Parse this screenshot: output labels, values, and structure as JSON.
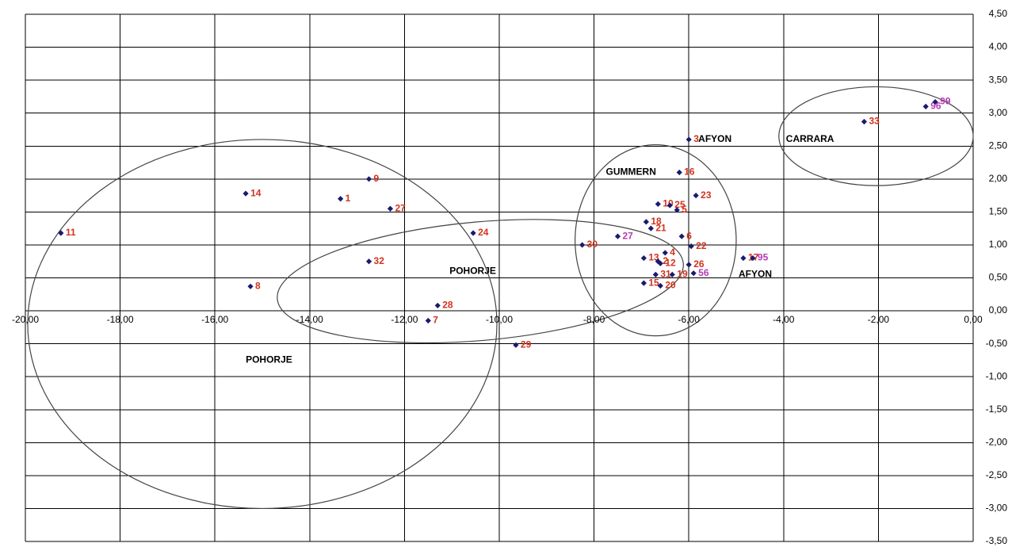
{
  "chart_data": {
    "type": "scatter",
    "xlim": [
      -20,
      0
    ],
    "ylim": [
      -3.5,
      4.5
    ],
    "x_step": 2,
    "y_step": 0.5,
    "grid": true,
    "x_ticks": [
      "-20,00",
      "-18,00",
      "-16,00",
      "-14,00",
      "-12,00",
      "-10,00",
      "-8,00",
      "-6,00",
      "-4,00",
      "-2,00",
      "0,00"
    ],
    "y_ticks": [
      "4,50",
      "4,00",
      "3,50",
      "3,00",
      "2,50",
      "2,00",
      "1,50",
      "1,00",
      "0,50",
      "0,00",
      "-0,50",
      "-1,00",
      "-1,50",
      "-2,00",
      "-2,50",
      "-3,00",
      "-3,50"
    ],
    "marker_color": "#1a1a6e",
    "label_colors": {
      "red": "#d2321e",
      "magenta": "#b43cb4"
    },
    "points": [
      {
        "label": "11",
        "x": -19.25,
        "y": 1.18,
        "color": "red"
      },
      {
        "label": "14",
        "x": -15.35,
        "y": 1.78,
        "color": "red"
      },
      {
        "label": "1",
        "x": -13.35,
        "y": 1.7,
        "color": "red"
      },
      {
        "label": "9",
        "x": -12.75,
        "y": 2.0,
        "color": "red"
      },
      {
        "label": "27",
        "x": -12.3,
        "y": 1.55,
        "color": "red"
      },
      {
        "label": "32",
        "x": -12.75,
        "y": 0.75,
        "color": "red"
      },
      {
        "label": "8",
        "x": -15.25,
        "y": 0.37,
        "color": "red"
      },
      {
        "label": "28",
        "x": -11.3,
        "y": 0.08,
        "color": "red"
      },
      {
        "label": "7",
        "x": -11.5,
        "y": -0.15,
        "color": "red"
      },
      {
        "label": "24",
        "x": -10.55,
        "y": 1.18,
        "color": "red"
      },
      {
        "label": "29",
        "x": -9.65,
        "y": -0.52,
        "color": "red"
      },
      {
        "label": "30",
        "x": -8.25,
        "y": 1.0,
        "color": "red"
      },
      {
        "label": "27",
        "x": -7.5,
        "y": 1.13,
        "color": "magenta"
      },
      {
        "label": "3",
        "x": -6.0,
        "y": 2.6,
        "color": "red"
      },
      {
        "label": "16",
        "x": -6.2,
        "y": 2.1,
        "color": "red"
      },
      {
        "label": "23",
        "x": -5.85,
        "y": 1.75,
        "color": "red"
      },
      {
        "label": "10",
        "x": -6.65,
        "y": 1.62,
        "color": "red"
      },
      {
        "label": "25",
        "x": -6.4,
        "y": 1.6,
        "color": "red"
      },
      {
        "label": "5",
        "x": -6.25,
        "y": 1.53,
        "color": "red"
      },
      {
        "label": "18",
        "x": -6.9,
        "y": 1.35,
        "color": "red"
      },
      {
        "label": "21",
        "x": -6.8,
        "y": 1.25,
        "color": "red"
      },
      {
        "label": "6",
        "x": -6.15,
        "y": 1.13,
        "color": "red"
      },
      {
        "label": "4",
        "x": -6.5,
        "y": 0.88,
        "color": "red"
      },
      {
        "label": "22",
        "x": -5.95,
        "y": 0.98,
        "color": "red"
      },
      {
        "label": "13",
        "x": -6.95,
        "y": 0.8,
        "color": "red"
      },
      {
        "label": "2",
        "x": -6.65,
        "y": 0.75,
        "color": "red"
      },
      {
        "label": "12",
        "x": -6.6,
        "y": 0.72,
        "color": "red"
      },
      {
        "label": "26",
        "x": -6.0,
        "y": 0.7,
        "color": "red"
      },
      {
        "label": "31",
        "x": -6.7,
        "y": 0.55,
        "color": "red"
      },
      {
        "label": "15",
        "x": -6.95,
        "y": 0.42,
        "color": "red"
      },
      {
        "label": "19",
        "x": -6.35,
        "y": 0.55,
        "color": "red"
      },
      {
        "label": "20",
        "x": -6.6,
        "y": 0.38,
        "color": "red"
      },
      {
        "label": "56",
        "x": -5.9,
        "y": 0.57,
        "color": "magenta"
      },
      {
        "label": "17",
        "x": -4.85,
        "y": 0.8,
        "color": "red"
      },
      {
        "label": "95",
        "x": -4.65,
        "y": 0.8,
        "color": "magenta"
      },
      {
        "label": "33",
        "x": -2.3,
        "y": 2.87,
        "color": "red"
      },
      {
        "label": "96",
        "x": -1.0,
        "y": 3.1,
        "color": "magenta"
      },
      {
        "label": "99",
        "x": -0.8,
        "y": 3.17,
        "color": "magenta"
      }
    ],
    "regions": [
      {
        "label": "POHORJE",
        "x": -15.35,
        "y": -0.75
      },
      {
        "label": "POHORJE",
        "x": -11.05,
        "y": 0.6
      },
      {
        "label": "GUMMERN",
        "x": -7.75,
        "y": 2.1
      },
      {
        "label": "AFYON",
        "x": -5.8,
        "y": 2.6
      },
      {
        "label": "AFYON",
        "x": -4.95,
        "y": 0.55
      },
      {
        "label": "CARRARA",
        "x": -3.95,
        "y": 2.6
      }
    ],
    "ellipses": [
      {
        "cx": -15.0,
        "cy": -0.2,
        "rx": 4.95,
        "ry": 2.8
      },
      {
        "cx": -10.4,
        "cy": 0.45,
        "rx": 4.3,
        "ry": 0.9,
        "rotate": -5
      },
      {
        "cx": -6.7,
        "cy": 1.07,
        "rx": 1.7,
        "ry": 1.45
      },
      {
        "cx": -2.05,
        "cy": 2.65,
        "rx": 2.05,
        "ry": 0.75
      }
    ]
  }
}
